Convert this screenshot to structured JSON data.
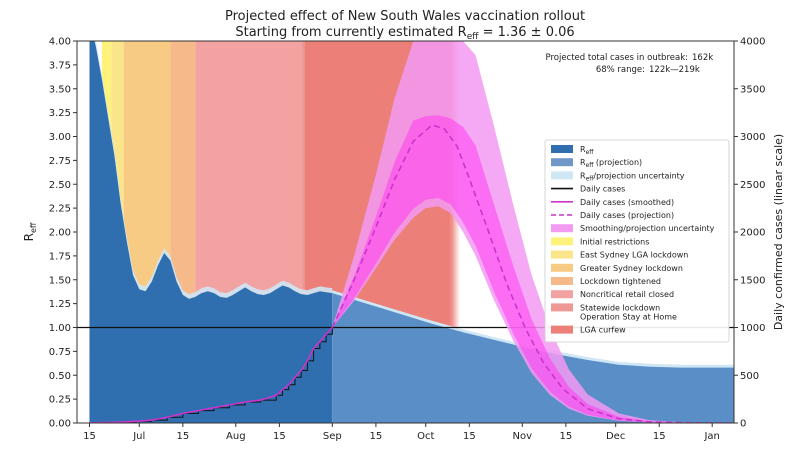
{
  "chart_data": {
    "type": "area",
    "title_line1": "Projected effect of New South Wales vaccination rollout",
    "title_line2_prefix": "Starting from currently estimated R",
    "title_line2_sub": "eff",
    "title_line2_suffix": " = 1.36 ± 0.06",
    "ylabel_left_main": "R",
    "ylabel_left_sub": "eff",
    "ylabel_right": "Daily confirmed cases (linear scale)",
    "y_left_range": [
      0,
      4
    ],
    "y_left_ticks": [
      "0.00",
      "0.25",
      "0.50",
      "0.75",
      "1.00",
      "1.25",
      "1.50",
      "1.75",
      "2.00",
      "2.25",
      "2.50",
      "2.75",
      "3.00",
      "3.25",
      "3.50",
      "3.75",
      "4.00"
    ],
    "y_right_range": [
      0,
      4000
    ],
    "y_right_ticks": [
      "0",
      "500",
      "1000",
      "1500",
      "2000",
      "2500",
      "3000",
      "3500",
      "4000"
    ],
    "x_range_days": [
      -4,
      207
    ],
    "x_ticks": [
      {
        "day": 0,
        "label": "15"
      },
      {
        "day": 16,
        "label": "Jul"
      },
      {
        "day": 30,
        "label": "15"
      },
      {
        "day": 47,
        "label": "Aug"
      },
      {
        "day": 61,
        "label": "15"
      },
      {
        "day": 78,
        "label": "Sep"
      },
      {
        "day": 92,
        "label": "15"
      },
      {
        "day": 108,
        "label": "Oct"
      },
      {
        "day": 122,
        "label": "15"
      },
      {
        "day": 139,
        "label": "Nov"
      },
      {
        "day": 153,
        "label": "15"
      },
      {
        "day": 169,
        "label": "Dec"
      },
      {
        "day": 183,
        "label": "15"
      },
      {
        "day": 200,
        "label": "Jan"
      }
    ],
    "annotation": {
      "line1_label": "Projected total cases in outbreak:",
      "line1_value": "162k",
      "line2_label": "68% range:",
      "line2_value": "122k—219k"
    },
    "restriction_phases": [
      {
        "name": "Initial restrictions",
        "start": 4,
        "end": 7,
        "color": "#fff27a"
      },
      {
        "name": "East Sydney LGA lockdown",
        "start": 7,
        "end": 11,
        "color": "#fbe58a"
      },
      {
        "name": "Greater Sydney lockdown",
        "start": 11,
        "end": 26,
        "color": "#f8cb84"
      },
      {
        "name": "Lockdown tightened",
        "start": 26,
        "end": 34,
        "color": "#f5b98a"
      },
      {
        "name": "Noncritical retail closed",
        "start": 34,
        "end": 68,
        "color": "#f2a3a1"
      },
      {
        "name": "Statewide lockdown Operation Stay at Home",
        "start": 68,
        "end": 69,
        "color": "#f09896"
      },
      {
        "name": "LGA curfew",
        "start": 69,
        "end": 116,
        "color": "#ec8078",
        "fade_end": 119
      }
    ],
    "reff": {
      "x": [
        0,
        2,
        4,
        6,
        8,
        10,
        12,
        14,
        16,
        18,
        20,
        22,
        24,
        26,
        28,
        30,
        32,
        34,
        36,
        38,
        40,
        42,
        44,
        46,
        48,
        50,
        52,
        54,
        56,
        58,
        60,
        62,
        64,
        66,
        68,
        70,
        72,
        74,
        76,
        78
      ],
      "y": [
        4.2,
        3.95,
        3.6,
        3.2,
        2.8,
        2.3,
        1.9,
        1.55,
        1.4,
        1.38,
        1.48,
        1.65,
        1.78,
        1.7,
        1.48,
        1.34,
        1.3,
        1.32,
        1.36,
        1.38,
        1.36,
        1.32,
        1.31,
        1.34,
        1.38,
        1.42,
        1.38,
        1.35,
        1.34,
        1.36,
        1.4,
        1.44,
        1.42,
        1.38,
        1.35,
        1.34,
        1.36,
        1.38,
        1.37,
        1.36
      ],
      "color": "#2f6fb0"
    },
    "reff_projection": {
      "x": [
        78,
        90,
        100,
        110,
        120,
        130,
        140,
        150,
        160,
        170,
        180,
        190,
        200,
        207
      ],
      "y": [
        1.36,
        1.24,
        1.14,
        1.04,
        0.95,
        0.87,
        0.79,
        0.72,
        0.66,
        0.61,
        0.59,
        0.58,
        0.58,
        0.58
      ],
      "color": "#5a8ec6"
    },
    "daily_cases": {
      "x": [
        0,
        5,
        10,
        15,
        20,
        25,
        30,
        35,
        40,
        45,
        50,
        55,
        60,
        62,
        64,
        66,
        68,
        70,
        72,
        74,
        76,
        78
      ],
      "y": [
        2,
        5,
        10,
        18,
        30,
        60,
        100,
        130,
        160,
        190,
        220,
        240,
        290,
        350,
        400,
        480,
        550,
        650,
        780,
        850,
        930,
        1000
      ]
    },
    "daily_cases_projection": {
      "x": [
        78,
        85,
        92,
        98,
        104,
        110,
        114,
        118,
        122,
        128,
        134,
        140,
        146,
        152,
        160,
        170,
        180,
        190,
        200,
        207
      ],
      "y": [
        1000,
        1500,
        2050,
        2550,
        2950,
        3120,
        3080,
        2900,
        2560,
        2020,
        1460,
        990,
        620,
        360,
        150,
        45,
        12,
        4,
        1,
        0
      ]
    },
    "projection_band": {
      "x": [
        78,
        85,
        92,
        98,
        104,
        108,
        112,
        116,
        120,
        124,
        130,
        136,
        142,
        148,
        154,
        160,
        170,
        180,
        190,
        200,
        207
      ],
      "lower": [
        1000,
        1280,
        1620,
        1920,
        2150,
        2250,
        2270,
        2200,
        2000,
        1750,
        1280,
        870,
        520,
        290,
        150,
        75,
        22,
        6,
        2,
        0,
        0
      ],
      "upper": [
        1000,
        1750,
        2600,
        3400,
        4000,
        4000,
        4000,
        4000,
        4000,
        3850,
        3100,
        2300,
        1550,
        980,
        560,
        300,
        100,
        28,
        8,
        2,
        0
      ]
    },
    "legend": [
      {
        "key": "reff",
        "label_main": "R",
        "label_sub": "eff",
        "label_rest": "",
        "swatch": "patch",
        "color": "#2f6fb0"
      },
      {
        "key": "reff-proj",
        "label_main": "R",
        "label_sub": "eff",
        "label_rest": " (projection)",
        "swatch": "patch",
        "color": "#6f98c8"
      },
      {
        "key": "reff-unc",
        "label_main": "R",
        "label_sub": "eff",
        "label_rest": "/projection uncertainty",
        "swatch": "patch",
        "color": "#cfe6f5"
      },
      {
        "key": "daily",
        "label_main": "Daily cases",
        "label_sub": "",
        "label_rest": "",
        "swatch": "line",
        "color": "#111111"
      },
      {
        "key": "daily-smooth",
        "label_main": "Daily cases (smoothed)",
        "label_sub": "",
        "label_rest": "",
        "swatch": "line",
        "color": "#cc33cc"
      },
      {
        "key": "daily-proj",
        "label_main": "Daily cases (projection)",
        "label_sub": "",
        "label_rest": "",
        "swatch": "dashed",
        "color": "#cc33cc"
      },
      {
        "key": "smooth-unc",
        "label_main": "Smoothing/projection uncertainty",
        "label_sub": "",
        "label_rest": "",
        "swatch": "patch",
        "color": "#f39af3"
      },
      {
        "key": "initial",
        "label_main": "Initial restrictions",
        "label_sub": "",
        "label_rest": "",
        "swatch": "patch",
        "color": "#fff27a"
      },
      {
        "key": "east",
        "label_main": "East Sydney LGA lockdown",
        "label_sub": "",
        "label_rest": "",
        "swatch": "patch",
        "color": "#fbe58a"
      },
      {
        "key": "greater",
        "label_main": "Greater Sydney lockdown",
        "label_sub": "",
        "label_rest": "",
        "swatch": "patch",
        "color": "#f8cb84"
      },
      {
        "key": "tightened",
        "label_main": "Lockdown tightened",
        "label_sub": "",
        "label_rest": "",
        "swatch": "patch",
        "color": "#f5b98a"
      },
      {
        "key": "retail",
        "label_main": "Noncritical retail closed",
        "label_sub": "",
        "label_rest": "",
        "swatch": "patch",
        "color": "#f2a3a1"
      },
      {
        "key": "statewide",
        "label_main": "Statewide lockdown",
        "label_sub": "",
        "label_rest": "",
        "label_line2": "Operation Stay at Home",
        "swatch": "patch",
        "color": "#f09896"
      },
      {
        "key": "curfew",
        "label_main": "LGA curfew",
        "label_sub": "",
        "label_rest": "",
        "swatch": "patch",
        "color": "#ec8078"
      }
    ],
    "reference_line": {
      "y": 1.0,
      "color": "#111111"
    },
    "colors": {
      "smoothed": "#cc33cc",
      "band_fill": "#f39af3",
      "band_fill_hot": "#ff3df0",
      "reff_uncertainty": "#cfe6f5"
    },
    "grid": false,
    "legend_placement": "right"
  }
}
